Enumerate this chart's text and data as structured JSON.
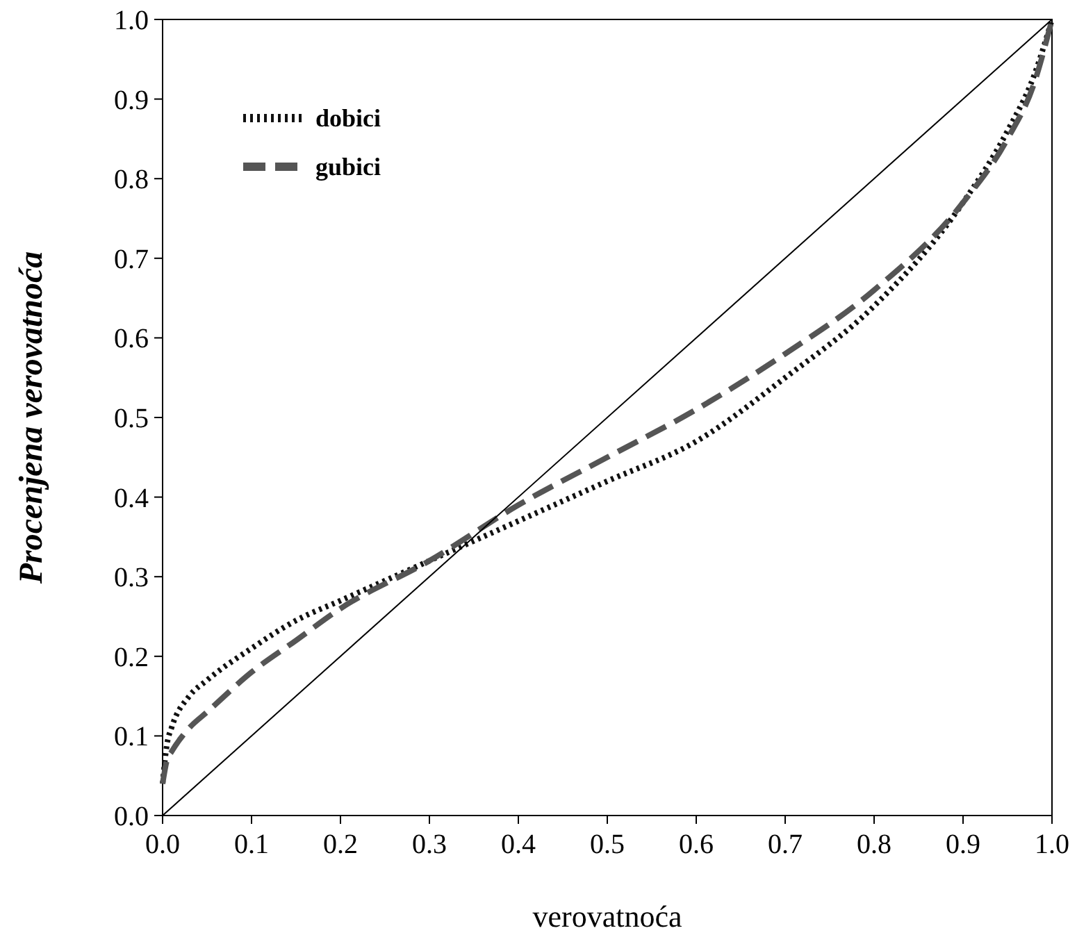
{
  "chart_data": {
    "type": "line",
    "xlabel": "verovatnoća",
    "ylabel": "Procenjena verovatnoća",
    "xlim": [
      0,
      1
    ],
    "ylim": [
      0,
      1
    ],
    "xticks": [
      {
        "value": 0,
        "label": "0.0"
      },
      0.1,
      0.2,
      0.3,
      0.4,
      0.5,
      0.6,
      0.7,
      0.8,
      0.9,
      {
        "value": 1,
        "label": "1.0"
      }
    ],
    "yticks": [
      {
        "value": 0,
        "label": "0.0"
      },
      0.1,
      0.2,
      0.3,
      0.4,
      0.5,
      0.6,
      0.7,
      0.8,
      0.9,
      {
        "value": 1,
        "label": "1.0"
      }
    ],
    "grid": false,
    "legend": "top left",
    "marker": "none",
    "series": [
      {
        "name": "dobici",
        "color": "#111111",
        "line_style": "dotted",
        "x": [
          0,
          0.005,
          0.01,
          0.03,
          0.05,
          0.1,
          0.15,
          0.2,
          0.3,
          0.4,
          0.5,
          0.6,
          0.7,
          0.8,
          0.9,
          0.95,
          0.98,
          1
        ],
        "values": [
          0.04,
          0.09,
          0.11,
          0.15,
          0.17,
          0.21,
          0.245,
          0.27,
          0.32,
          0.37,
          0.42,
          0.47,
          0.55,
          0.64,
          0.77,
          0.86,
          0.93,
          1
        ]
      },
      {
        "name": "gubici",
        "color": "#555555",
        "line_style": "dashed",
        "x": [
          0,
          0.005,
          0.01,
          0.03,
          0.05,
          0.1,
          0.15,
          0.2,
          0.3,
          0.4,
          0.5,
          0.6,
          0.7,
          0.8,
          0.9,
          0.95,
          0.98,
          1
        ],
        "values": [
          0.04,
          0.07,
          0.08,
          0.11,
          0.13,
          0.18,
          0.22,
          0.26,
          0.32,
          0.39,
          0.45,
          0.51,
          0.58,
          0.66,
          0.77,
          0.85,
          0.92,
          1
        ]
      },
      {
        "color": "#000000",
        "line_style": "solid",
        "x": [
          0,
          1
        ],
        "values": [
          0,
          1
        ]
      }
    ]
  }
}
